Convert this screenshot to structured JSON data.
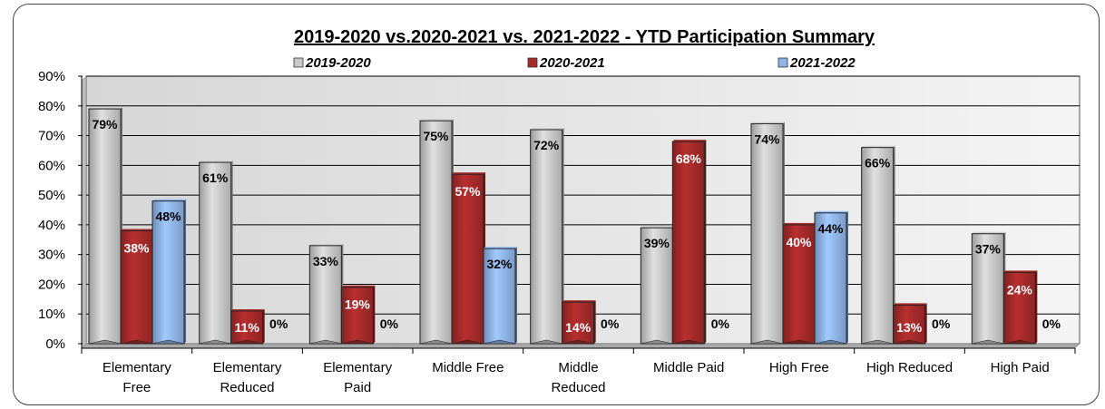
{
  "chart_data": {
    "type": "bar",
    "title": "2019-2020 vs.2020-2021 vs. 2021-2022 - YTD Participation Summary",
    "categories": [
      [
        "Elementary",
        "Free"
      ],
      [
        "Elementary",
        "Reduced"
      ],
      [
        "Elementary",
        "Paid"
      ],
      [
        "Middle Free"
      ],
      [
        "Middle",
        "Reduced"
      ],
      [
        "Middle Paid"
      ],
      [
        "High Free"
      ],
      [
        "High Reduced"
      ],
      [
        "High Paid"
      ]
    ],
    "series": [
      {
        "name": "2019-2020",
        "color": "#c8c8c8",
        "values": [
          79,
          61,
          33,
          75,
          72,
          39,
          74,
          66,
          37
        ],
        "labels": [
          "79%",
          "61%",
          "33%",
          "75%",
          "72%",
          "39%",
          "74%",
          "66%",
          "37%"
        ]
      },
      {
        "name": "2020-2021",
        "color": "#a52a2a",
        "values": [
          38,
          11,
          19,
          57,
          14,
          68,
          40,
          13,
          24
        ],
        "labels": [
          "38%",
          "11%",
          "19%",
          "57%",
          "14%",
          "68%",
          "40%",
          "13%",
          "24%"
        ]
      },
      {
        "name": "2021-2022",
        "color": "#8fb4e8",
        "values": [
          48,
          0,
          0,
          32,
          0,
          0,
          44,
          0,
          0
        ],
        "labels": [
          "48%",
          "0%",
          "0%",
          "32%",
          "0%",
          "0%",
          "44%",
          "0%",
          "0%"
        ]
      }
    ],
    "yticks": [
      "0%",
      "10%",
      "20%",
      "30%",
      "40%",
      "50%",
      "60%",
      "70%",
      "80%",
      "90%"
    ],
    "ylim": [
      0,
      90
    ],
    "grid": true,
    "legend_position": "top"
  }
}
